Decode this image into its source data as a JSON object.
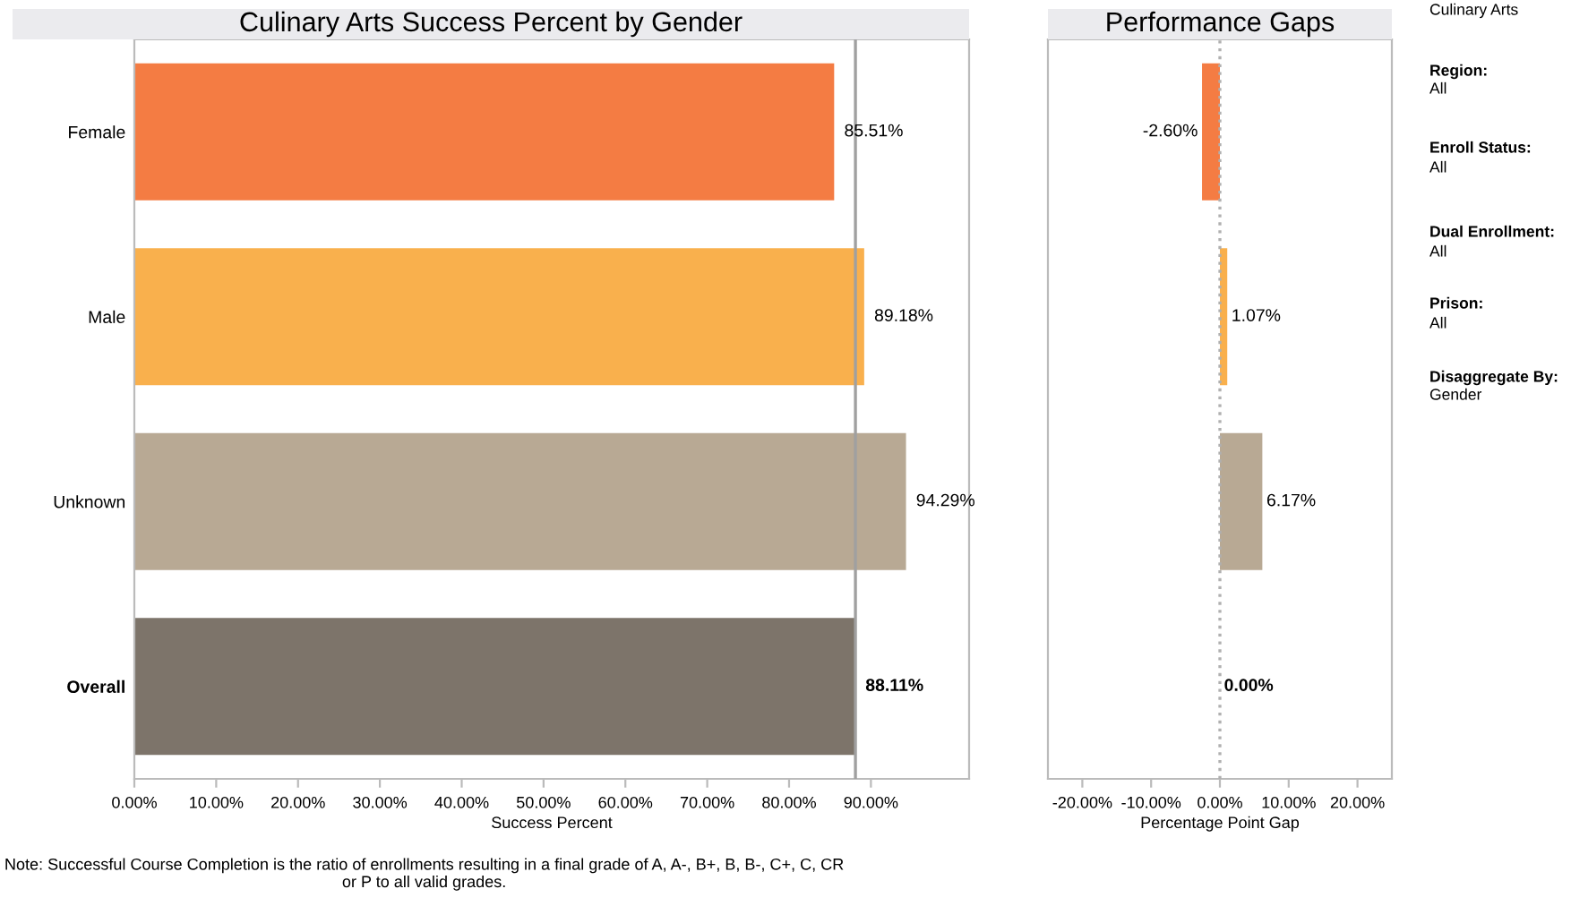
{
  "chart_data": [
    {
      "type": "bar",
      "orientation": "horizontal",
      "title": "Culinary Arts Success Percent by Gender",
      "xlabel": "Success Percent",
      "categories": [
        "Female",
        "Male",
        "Unknown",
        "Overall"
      ],
      "values": [
        85.51,
        89.18,
        94.29,
        88.11
      ],
      "colors": [
        "#f47c43",
        "#f9b04d",
        "#b8a994",
        "#7d746a"
      ],
      "value_labels": [
        "85.51%",
        "89.18%",
        "94.29%",
        "88.11%"
      ],
      "xlim": [
        0,
        102
      ],
      "xticks": [
        {
          "value": 0,
          "label": "0.00%"
        },
        {
          "value": 10,
          "label": "10.00%"
        },
        {
          "value": 20,
          "label": "20.00%"
        },
        {
          "value": 30,
          "label": "30.00%"
        },
        {
          "value": 40,
          "label": "40.00%"
        },
        {
          "value": 50,
          "label": "50.00%"
        },
        {
          "value": 60,
          "label": "60.00%"
        },
        {
          "value": 70,
          "label": "70.00%"
        },
        {
          "value": 80,
          "label": "80.00%"
        },
        {
          "value": 90,
          "label": "90.00%"
        }
      ],
      "ref_lines": [
        {
          "axis": "x",
          "value": 88.11,
          "color": "#a0a0a0",
          "line_style": "solid"
        }
      ],
      "grid": false,
      "annotations": [
        "Note: Successful Course Completion is the ratio of enrollments resulting in a final grade of A, A-, B+, B, B-, C+, C, CR or P to all valid grades."
      ]
    },
    {
      "type": "bar",
      "orientation": "horizontal",
      "title": "Performance Gaps",
      "xlabel": "Percentage Point Gap",
      "categories": [
        null,
        null,
        null,
        null
      ],
      "values": [
        -2.6,
        1.07,
        6.17,
        0.0
      ],
      "colors": [
        "#f47c43",
        "#f9b04d",
        "#b8a994",
        "#7d746a"
      ],
      "value_labels": [
        "-2.60%",
        "1.07%",
        "6.17%",
        "0.00%"
      ],
      "xlim": [
        -25,
        25
      ],
      "xticks": [
        {
          "value": -20,
          "label": "-20.00%"
        },
        {
          "value": -10,
          "label": "-10.00%"
        },
        {
          "value": 0,
          "label": "0.00%"
        },
        {
          "value": 10,
          "label": "10.00%"
        },
        {
          "value": 20,
          "label": "20.00%"
        }
      ],
      "ref_lines": [
        {
          "axis": "x",
          "value": 0,
          "color": "#b0b0b0",
          "line_style": "dotted"
        }
      ],
      "tick_labels": "x",
      "grid": false
    },
    {
      "type": "other",
      "annotations": [
        "Culinary Arts",
        "Region:",
        "All",
        "Enroll Status:",
        "All",
        "Dual Enrollment:",
        "All",
        "Prison:",
        "All",
        "Disaggregate By:",
        "Gender"
      ]
    }
  ]
}
